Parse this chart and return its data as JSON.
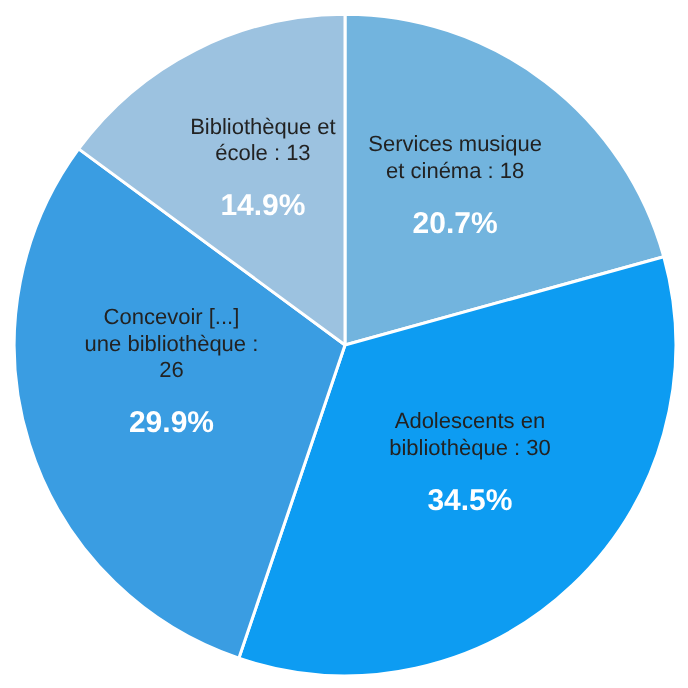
{
  "chart_data": {
    "type": "pie",
    "categories": [
      "Services musique et cinéma : 18",
      "Adolescents en bibliothèque : 30",
      "Concevoir [...] une bibliothèque : 26",
      "Bibliothèque et école : 13"
    ],
    "values": [
      20.7,
      34.5,
      29.9,
      14.9
    ],
    "colors": [
      "#72b4de",
      "#0d9cf2",
      "#3a9de2",
      "#9cc2e0"
    ],
    "value_labels": [
      "20.7%",
      "34.5%",
      "29.9%",
      "14.9%"
    ]
  }
}
